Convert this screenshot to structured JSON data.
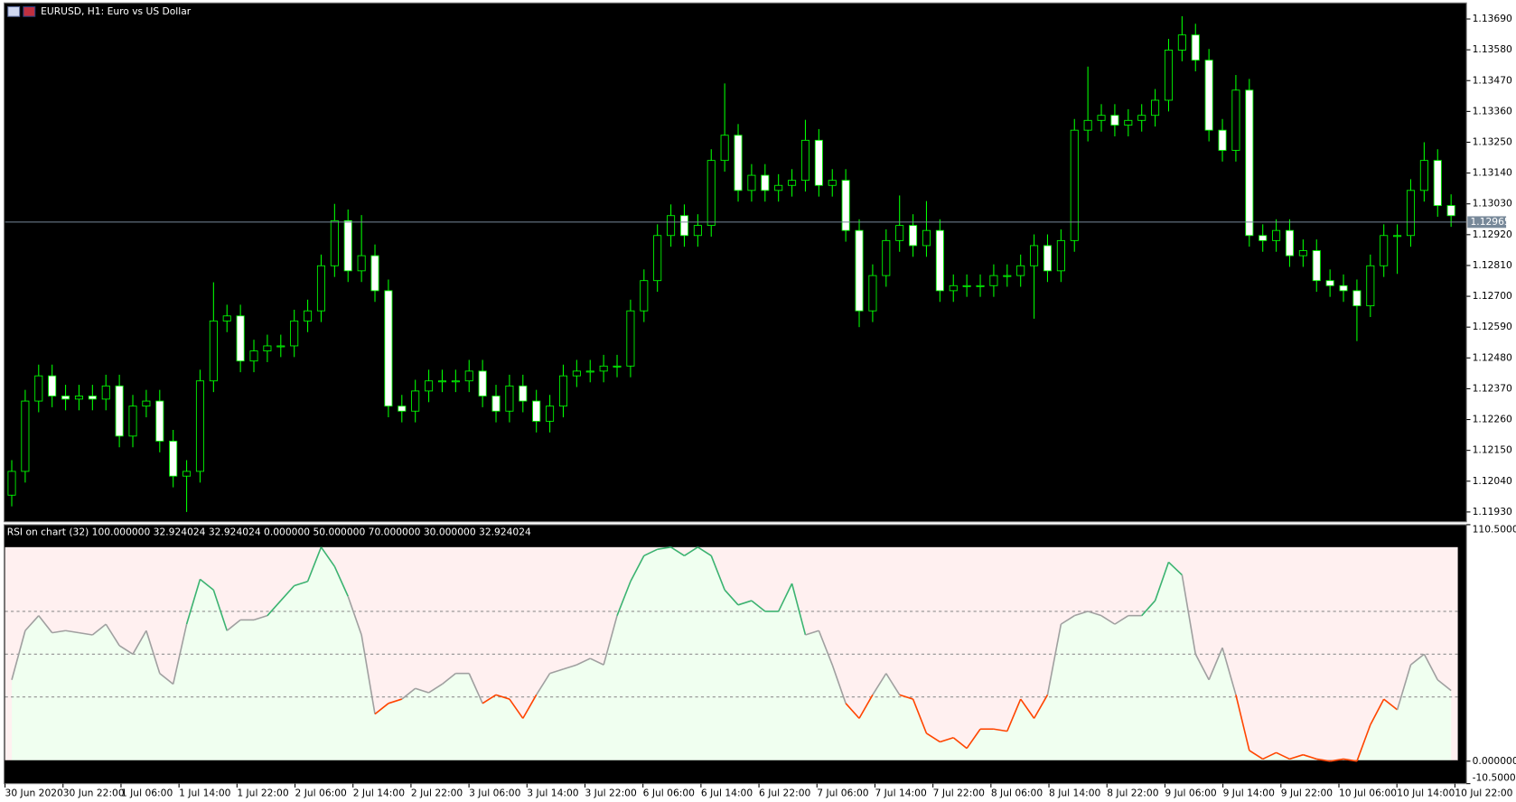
{
  "chart_data": [
    {
      "type": "candlestick",
      "title": "EURUSD, H1:  Euro vs US Dollar",
      "open": [
        1.1199,
        1.12075,
        1.12326,
        1.12416,
        1.12344,
        1.12333,
        1.12344,
        1.12333,
        1.1238,
        1.12201,
        1.12308,
        1.12326,
        1.12183,
        1.12058,
        1.12075,
        1.12398,
        1.12612,
        1.1263,
        1.12469,
        1.12505,
        1.12523,
        1.12523,
        1.12612,
        1.12648,
        1.12809,
        1.1297,
        1.12791,
        1.12845,
        1.1272,
        1.12308,
        1.1229,
        1.12362,
        1.12398,
        1.12398,
        1.12398,
        1.12433,
        1.12344,
        1.1229,
        1.1238,
        1.12326,
        1.12254,
        1.12308,
        1.12416,
        1.12433,
        1.12433,
        1.12451,
        1.12451,
        1.12648,
        1.12756,
        1.12917,
        1.12988,
        1.12917,
        1.12953,
        1.13185,
        1.13275,
        1.13078,
        1.13132,
        1.13078,
        1.13096,
        1.13114,
        1.13257,
        1.13096,
        1.13114,
        1.12935,
        1.12648,
        1.12774,
        1.12899,
        1.12953,
        1.12881,
        1.12935,
        1.1272,
        1.12738,
        1.12738,
        1.12738,
        1.12774,
        1.12774,
        1.12809,
        1.12881,
        1.12791,
        1.12899,
        1.13293,
        1.13328,
        1.13346,
        1.13311,
        1.13328,
        1.13346,
        1.134,
        1.13579,
        1.13633,
        1.13543,
        1.13293,
        1.13221,
        1.13436,
        1.12917,
        1.12899,
        1.12935,
        1.12845,
        1.12863,
        1.12756,
        1.12738,
        1.1272,
        1.12666,
        1.12809,
        1.12917,
        1.12917,
        1.13078,
        1.13185,
        1.13024
      ],
      "high": [
        1.12115,
        1.12366,
        1.12456,
        1.12456,
        1.12384,
        1.12384,
        1.12384,
        1.1242,
        1.1242,
        1.12348,
        1.12366,
        1.12366,
        1.12223,
        1.12115,
        1.12438,
        1.1275,
        1.1267,
        1.1267,
        1.12545,
        1.12563,
        1.12563,
        1.12652,
        1.12688,
        1.12849,
        1.1303,
        1.1301,
        1.1299,
        1.12885,
        1.1276,
        1.12348,
        1.12402,
        1.12438,
        1.12438,
        1.12438,
        1.12473,
        1.12473,
        1.12384,
        1.1242,
        1.1242,
        1.12366,
        1.12348,
        1.12456,
        1.12473,
        1.12473,
        1.12491,
        1.12491,
        1.12688,
        1.12796,
        1.12957,
        1.13028,
        1.13028,
        1.12993,
        1.13225,
        1.1346,
        1.13315,
        1.13172,
        1.13172,
        1.13136,
        1.13154,
        1.1333,
        1.13297,
        1.13154,
        1.13154,
        1.12975,
        1.12814,
        1.12939,
        1.1306,
        1.12993,
        1.1304,
        1.12975,
        1.12778,
        1.12778,
        1.12778,
        1.12814,
        1.12814,
        1.12849,
        1.12921,
        1.12921,
        1.12939,
        1.13333,
        1.1352,
        1.13386,
        1.13386,
        1.13368,
        1.13386,
        1.1344,
        1.13619,
        1.137,
        1.13673,
        1.13583,
        1.13333,
        1.1349,
        1.13476,
        1.12957,
        1.12975,
        1.12975,
        1.12903,
        1.12903,
        1.12796,
        1.12778,
        1.1276,
        1.12849,
        1.12957,
        1.12957,
        1.13118,
        1.1325,
        1.13225,
        1.13064
      ],
      "low": [
        1.1195,
        1.12035,
        1.12286,
        1.12304,
        1.12293,
        1.12293,
        1.12293,
        1.12293,
        1.12161,
        1.12161,
        1.12268,
        1.12143,
        1.12018,
        1.1193,
        1.12035,
        1.12358,
        1.12572,
        1.12429,
        1.12429,
        1.12465,
        1.12483,
        1.12483,
        1.12572,
        1.12608,
        1.12769,
        1.12751,
        1.12751,
        1.1268,
        1.12268,
        1.1225,
        1.1225,
        1.12322,
        1.12358,
        1.12358,
        1.12358,
        1.12304,
        1.1225,
        1.1225,
        1.12286,
        1.12214,
        1.12214,
        1.12268,
        1.12376,
        1.12393,
        1.12393,
        1.12411,
        1.12411,
        1.12608,
        1.12716,
        1.12877,
        1.12877,
        1.12877,
        1.12913,
        1.13145,
        1.13038,
        1.13038,
        1.13038,
        1.13038,
        1.13056,
        1.13074,
        1.13056,
        1.13056,
        1.12895,
        1.1259,
        1.12608,
        1.12734,
        1.12859,
        1.12841,
        1.12841,
        1.1268,
        1.1268,
        1.12698,
        1.12698,
        1.12698,
        1.12734,
        1.12734,
        1.1262,
        1.12751,
        1.12751,
        1.12859,
        1.13253,
        1.13288,
        1.13271,
        1.13271,
        1.13288,
        1.13306,
        1.1336,
        1.13539,
        1.13503,
        1.13253,
        1.13181,
        1.13181,
        1.12877,
        1.12859,
        1.12859,
        1.12805,
        1.12805,
        1.12716,
        1.12698,
        1.1268,
        1.1254,
        1.12626,
        1.12769,
        1.1278,
        1.12877,
        1.13038,
        1.12984,
        1.12948
      ],
      "close": [
        1.12075,
        1.12326,
        1.12416,
        1.12344,
        1.12333,
        1.12344,
        1.12333,
        1.1238,
        1.12201,
        1.12308,
        1.12326,
        1.12183,
        1.12058,
        1.12075,
        1.12398,
        1.12612,
        1.1263,
        1.12469,
        1.12505,
        1.12523,
        1.12523,
        1.12612,
        1.12648,
        1.12809,
        1.1297,
        1.12791,
        1.12845,
        1.1272,
        1.12308,
        1.1229,
        1.12362,
        1.12398,
        1.12398,
        1.12398,
        1.12433,
        1.12344,
        1.1229,
        1.1238,
        1.12326,
        1.12254,
        1.12308,
        1.12416,
        1.12433,
        1.12433,
        1.12451,
        1.12451,
        1.12648,
        1.12756,
        1.12917,
        1.12988,
        1.12917,
        1.12953,
        1.13185,
        1.13275,
        1.13078,
        1.13132,
        1.13078,
        1.13096,
        1.13114,
        1.13257,
        1.13096,
        1.13114,
        1.12935,
        1.12648,
        1.12774,
        1.12899,
        1.12953,
        1.12881,
        1.12935,
        1.1272,
        1.12738,
        1.12738,
        1.12738,
        1.12774,
        1.12774,
        1.12809,
        1.12881,
        1.12791,
        1.12899,
        1.13293,
        1.13328,
        1.13346,
        1.13311,
        1.13328,
        1.13346,
        1.134,
        1.13579,
        1.13633,
        1.13543,
        1.13293,
        1.13221,
        1.13436,
        1.12917,
        1.12899,
        1.12935,
        1.12845,
        1.12863,
        1.12756,
        1.12738,
        1.1272,
        1.12666,
        1.12809,
        1.12917,
        1.12917,
        1.13078,
        1.13185,
        1.13024,
        1.12988
      ],
      "ylim": [
        1.11895,
        1.13744
      ],
      "yticks": [
        {
          "value": 1.1369,
          "label": "1.13690"
        },
        {
          "value": 1.1358,
          "label": "1.13580"
        },
        {
          "value": 1.1347,
          "label": "1.13470"
        },
        {
          "value": 1.1336,
          "label": "1.13360"
        },
        {
          "value": 1.1325,
          "label": "1.13250"
        },
        {
          "value": 1.1314,
          "label": "1.13140"
        },
        {
          "value": 1.1303,
          "label": "1.13030"
        },
        {
          "value": 1.1292,
          "label": "1.12920"
        },
        {
          "value": 1.1281,
          "label": "1.12810"
        },
        {
          "value": 1.127,
          "label": "1.12700"
        },
        {
          "value": 1.1259,
          "label": "1.12590"
        },
        {
          "value": 1.1248,
          "label": "1.12480"
        },
        {
          "value": 1.1237,
          "label": "1.12370"
        },
        {
          "value": 1.1226,
          "label": "1.12260"
        },
        {
          "value": 1.1215,
          "label": "1.12150"
        },
        {
          "value": 1.1204,
          "label": "1.12040"
        },
        {
          "value": 1.1193,
          "label": "1.11930"
        }
      ],
      "current_price": 1.12965,
      "up_color": "#000000",
      "down_color": "#ffffff",
      "wick_color": "#00ff00",
      "price_line_color": "#778899"
    },
    {
      "type": "line",
      "title": "RSI on chart (32) 100.000000 32.924024 32.924024 0.000000 50.000000 70.000000 30.000000 32.924024",
      "values": [
        38,
        61,
        68,
        60,
        61,
        60,
        59,
        64,
        54,
        50,
        61,
        41,
        36,
        64,
        85,
        80,
        61,
        66,
        66,
        68,
        75,
        82,
        84,
        100,
        91,
        77,
        59,
        22,
        27,
        29,
        34,
        32,
        36,
        41,
        41,
        27,
        31,
        29,
        20,
        31,
        41,
        43,
        45,
        48,
        45,
        68,
        84,
        96,
        99,
        100,
        96,
        100,
        96,
        80,
        73,
        75,
        70,
        70,
        83,
        59,
        61,
        45,
        27,
        20,
        31,
        41,
        31,
        29,
        13,
        9,
        11,
        6,
        15,
        15,
        14,
        29,
        20,
        31,
        64,
        68,
        70,
        68,
        64,
        68,
        68,
        75,
        93,
        87,
        50,
        38,
        53,
        31,
        5,
        1,
        4,
        1,
        3,
        1,
        0,
        1,
        0,
        17,
        29,
        24,
        45,
        50,
        38,
        33
      ],
      "ylim": [
        -10.5,
        110.5
      ],
      "yticks": [
        {
          "value": 110.5,
          "label": "110.500000"
        },
        {
          "value": 0,
          "label": "0.000000"
        },
        {
          "value": -10.5,
          "label": "-10.500000"
        }
      ],
      "levels": [
        70,
        50,
        30
      ],
      "band": [
        0,
        100
      ],
      "high_color": "#3cb371",
      "low_color": "#ff4500",
      "mid_color": "#a0a0a0",
      "upper_fill": "#fff0f0",
      "lower_fill": "#f0fff0",
      "x_labels": [
        "30 Jun 2020",
        "30 Jun 22:00",
        "1 Jul 06:00",
        "1 Jul 14:00",
        "1 Jul 22:00",
        "2 Jul 06:00",
        "2 Jul 14:00",
        "2 Jul 22:00",
        "3 Jul 06:00",
        "3 Jul 14:00",
        "3 Jul 22:00",
        "6 Jul 06:00",
        "6 Jul 14:00",
        "6 Jul 22:00",
        "7 Jul 06:00",
        "7 Jul 14:00",
        "7 Jul 22:00",
        "8 Jul 06:00",
        "8 Jul 14:00",
        "8 Jul 22:00",
        "9 Jul 06:00",
        "9 Jul 14:00",
        "9 Jul 22:00",
        "10 Jul 06:00",
        "10 Jul 14:00",
        "10 Jul 22:00"
      ]
    }
  ]
}
